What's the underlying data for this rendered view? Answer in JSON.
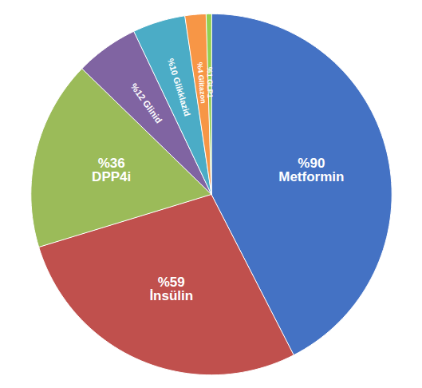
{
  "chart_data": {
    "type": "pie",
    "categories": [
      "%90\nMetformin",
      "%59\nİnsülin",
      "%36\nDPP4i",
      "%12 Glinid",
      "%10 Glikklazid",
      "%4 Glitazon",
      "%1 GLP1"
    ],
    "values": [
      90,
      59,
      36,
      12,
      10,
      4,
      1
    ],
    "colors": [
      "#4472C4",
      "#C0504D",
      "#9BBB59",
      "#8064A2",
      "#4BACC6",
      "#F79646",
      "#92D050"
    ]
  }
}
